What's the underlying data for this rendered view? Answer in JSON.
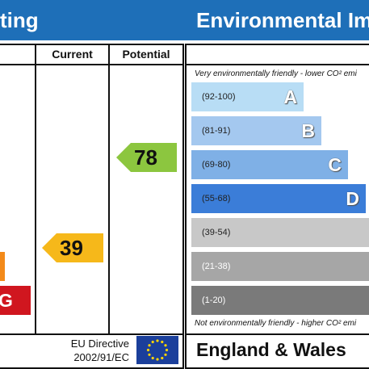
{
  "header": {
    "left_title": "ting",
    "right_title": "Environmental Im"
  },
  "table": {
    "col_current": "Current",
    "col_potential": "Potential",
    "current_value": "39",
    "potential_value": "78",
    "left_band_letter": "G",
    "eu_directive_line1": "EU Directive",
    "eu_directive_line2": "2002/91/EC"
  },
  "environment": {
    "top_note": "Very environmentally friendly - lower CO² emi",
    "bottom_note": "Not environmentally friendly - higher CO² emi",
    "footer": "England & Wales",
    "bands": [
      {
        "range": "(92-100)",
        "letter": "A",
        "color": "#b8ddf5"
      },
      {
        "range": "(81-91)",
        "letter": "B",
        "color": "#a4c8ef"
      },
      {
        "range": "(69-80)",
        "letter": "C",
        "color": "#7fb0e6"
      },
      {
        "range": "(55-68)",
        "letter": "D",
        "color": "#3b7dd8"
      },
      {
        "range": "(39-54)",
        "letter": "E",
        "color": "#c8c8c8"
      },
      {
        "range": "(21-38)",
        "letter": "",
        "color": "#a6a6a6"
      },
      {
        "range": "(1-20)",
        "letter": "",
        "color": "#7a7a7a"
      }
    ]
  },
  "colors": {
    "header_blue": "#1e6fb8",
    "potential_green": "#8cc63f",
    "current_amber": "#f6b81a",
    "band_f_orange": "#f38a1a",
    "band_g_red": "#d0161f",
    "eu_flag_blue": "#1b3f9b",
    "eu_star_yellow": "#ffd400"
  }
}
